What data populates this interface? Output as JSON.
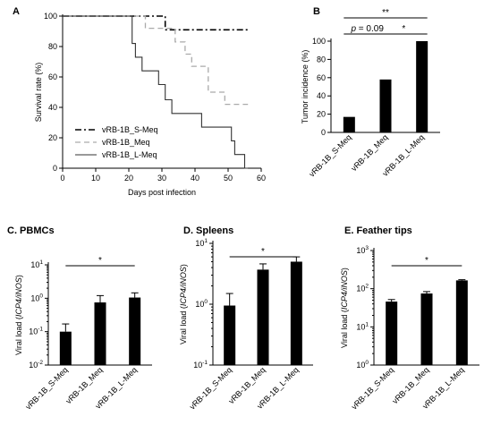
{
  "chart_data": [
    {
      "type": "line",
      "panel": "A",
      "xlabel": "Days post infection",
      "ylabel": "Survival rate (%)",
      "xlim": [
        0,
        60
      ],
      "ylim": [
        0,
        100
      ],
      "x_ticks": [
        0,
        10,
        20,
        30,
        40,
        50,
        60
      ],
      "y_ticks": [
        0,
        20,
        40,
        60,
        80,
        100
      ],
      "step": true,
      "legend_position": "bottom-left",
      "series": [
        {
          "name": "vRB-1B_S-Meq",
          "style": "dashdot",
          "color": "#000000",
          "x": [
            0,
            31,
            56
          ],
          "y": [
            100,
            91,
            91
          ]
        },
        {
          "name": "vRB-1B_Meq",
          "style": "dashed",
          "color": "#aaaaaa",
          "x": [
            0,
            25,
            29,
            34,
            37,
            39,
            44,
            49,
            56
          ],
          "y": [
            100,
            92,
            92,
            83,
            75,
            67,
            50,
            42,
            42
          ]
        },
        {
          "name": "vRB-1B_L-Meq",
          "style": "solid",
          "color": "#333333",
          "x": [
            0,
            21,
            22,
            24,
            29,
            31,
            33,
            42,
            51,
            52,
            53,
            55,
            56
          ],
          "y": [
            100,
            82,
            73,
            64,
            55,
            45,
            36,
            27,
            18,
            9,
            9,
            0,
            0
          ]
        }
      ]
    },
    {
      "type": "bar",
      "panel": "B",
      "ylabel": "Tumor incidence (%)",
      "ylim": [
        0,
        100
      ],
      "y_ticks": [
        0,
        20,
        40,
        60,
        80,
        100
      ],
      "categories": [
        "vRB-1B_S-Meq",
        "vRB-1B_Meq",
        "vRB-1B_L-Meq"
      ],
      "values": [
        17,
        58,
        100
      ],
      "significance": [
        {
          "from": 0,
          "to": 2,
          "label": "**"
        },
        {
          "from": 0,
          "to": 1,
          "label": "p = 0.09"
        },
        {
          "from": 1,
          "to": 2,
          "label": "*"
        }
      ]
    },
    {
      "type": "bar",
      "panel": "C",
      "title": "C. PBMCs",
      "ylabel": "Viral load (ICP4/iNOS)",
      "scale": "log",
      "ylim": [
        0.01,
        10
      ],
      "y_ticks": [
        {
          "value": 0.01,
          "base": "10",
          "exp": "-2"
        },
        {
          "value": 0.1,
          "base": "10",
          "exp": "-1"
        },
        {
          "value": 1,
          "base": "10",
          "exp": "0"
        },
        {
          "value": 10,
          "base": "10",
          "exp": "1"
        }
      ],
      "categories": [
        "vRB-1B_S-Meq",
        "vRB-1B_Meq",
        "vRB-1B_L-Meq"
      ],
      "values": [
        0.1,
        0.75,
        1.05
      ],
      "error_upper": [
        0.17,
        1.2,
        1.45
      ],
      "significance": [
        {
          "from": 0,
          "to": 2,
          "label": "*"
        }
      ]
    },
    {
      "type": "bar",
      "panel": "D",
      "title": "D. Spleens",
      "ylabel": "Viral load (ICP4/iNOS)",
      "scale": "log",
      "ylim": [
        0.1,
        10
      ],
      "y_ticks": [
        {
          "value": 0.1,
          "base": "10",
          "exp": "-1"
        },
        {
          "value": 1,
          "base": "10",
          "exp": "0"
        },
        {
          "value": 10,
          "base": "10",
          "exp": "1"
        }
      ],
      "categories": [
        "vRB-1B_S-Meq",
        "vRB-1B_Meq",
        "vRB-1B_L-Meq"
      ],
      "values": [
        0.95,
        3.7,
        5.0
      ],
      "error_upper": [
        1.5,
        4.6,
        6.0
      ],
      "significance": [
        {
          "from": 0,
          "to": 2,
          "label": "*"
        }
      ]
    },
    {
      "type": "bar",
      "panel": "E",
      "title": "E. Feather tips",
      "ylabel": "Viral load (ICP4/iNOS)",
      "scale": "log",
      "ylim": [
        1,
        1000
      ],
      "y_ticks": [
        {
          "value": 1,
          "base": "10",
          "exp": "0"
        },
        {
          "value": 10,
          "base": "10",
          "exp": "1"
        },
        {
          "value": 100,
          "base": "10",
          "exp": "2"
        },
        {
          "value": 1000,
          "base": "10",
          "exp": "3"
        }
      ],
      "categories": [
        "vRB-1B_S-Meq",
        "vRB-1B_Meq",
        "vRB-1B_L-Meq"
      ],
      "values": [
        46,
        75,
        165
      ],
      "error_upper": [
        52,
        84,
        172
      ],
      "significance": [
        {
          "from": 0,
          "to": 2,
          "label": "*"
        }
      ]
    }
  ]
}
